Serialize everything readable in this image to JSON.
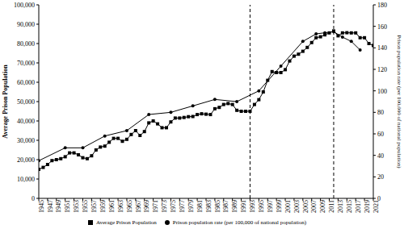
{
  "chart_data": {
    "type": "line",
    "x": [
      1945,
      1946,
      1947,
      1948,
      1949,
      1950,
      1951,
      1952,
      1953,
      1954,
      1955,
      1956,
      1957,
      1958,
      1959,
      1960,
      1961,
      1962,
      1963,
      1964,
      1965,
      1966,
      1967,
      1968,
      1969,
      1970,
      1971,
      1972,
      1973,
      1974,
      1975,
      1976,
      1977,
      1978,
      1979,
      1980,
      1981,
      1982,
      1983,
      1984,
      1985,
      1986,
      1987,
      1988,
      1989,
      1990,
      1991,
      1992,
      1993,
      1994,
      1995,
      1996,
      1997,
      1998,
      1999,
      2000,
      2001,
      2002,
      2003,
      2004,
      2005,
      2006,
      2007,
      2008,
      2009,
      2010,
      2011,
      2012,
      2013,
      2014,
      2015,
      2016,
      2017,
      2018,
      2019,
      2020,
      2021
    ],
    "xlim": [
      1945,
      2021
    ],
    "xticks": [
      1945,
      1947,
      1949,
      1951,
      1953,
      1955,
      1957,
      1959,
      1961,
      1963,
      1965,
      1967,
      1969,
      1971,
      1973,
      1975,
      1977,
      1979,
      1981,
      1983,
      1985,
      1987,
      1989,
      1991,
      1993,
      1995,
      1997,
      1999,
      2001,
      2003,
      2005,
      2007,
      2009,
      2011,
      2013,
      2015,
      2017,
      2019,
      2021
    ],
    "y_label": "Average Prison Population",
    "y2_label": "Prison population rate (per 100,000 of national population)",
    "ylim": [
      0,
      100000
    ],
    "yticks": [
      0,
      {
        "value": 10000,
        "label": "10,000"
      },
      {
        "value": 20000,
        "label": "20,000"
      },
      {
        "value": 30000,
        "label": "30,000"
      },
      {
        "value": 40000,
        "label": "40,000"
      },
      {
        "value": 50000,
        "label": "50,000"
      },
      {
        "value": 60000,
        "label": "60,000"
      },
      {
        "value": 70000,
        "label": "70,000"
      },
      {
        "value": 80000,
        "label": "80,000"
      },
      {
        "value": 90000,
        "label": "90,000"
      },
      {
        "value": 100000,
        "label": "100,000"
      }
    ],
    "y2lim": [
      0,
      180
    ],
    "y2ticks": [
      0,
      20,
      40,
      60,
      80,
      100,
      120,
      140,
      160,
      180
    ],
    "series": [
      {
        "name": "Average Prison Population",
        "color": "#000000",
        "marker": "square",
        "values": [
          15000,
          16000,
          17500,
          19500,
          20000,
          20500,
          21500,
          23500,
          23500,
          22500,
          21000,
          20500,
          22000,
          25000,
          26500,
          27000,
          29000,
          31000,
          31000,
          29500,
          30500,
          33000,
          35000,
          32500,
          34500,
          39000,
          40000,
          38500,
          36500,
          36500,
          39500,
          41500,
          41500,
          41800,
          42200,
          42300,
          43300,
          43700,
          43500,
          43300,
          46300,
          47000,
          48500,
          49000,
          48500,
          45500,
          45000,
          45000,
          45000,
          48500,
          51000,
          55000,
          61000,
          65500,
          65000,
          65000,
          66500,
          71000,
          73500,
          74500,
          76000,
          78000,
          80500,
          83000,
          83500,
          84500,
          85500,
          86500,
          84000,
          85500,
          85600,
          85500,
          85500,
          83000,
          83000,
          80000,
          79000
        ]
      },
      {
        "name": "Prison population rate (per 100,000 of national population)",
        "color": "#000000",
        "marker": "circle",
        "axis": "y2",
        "values": [
          35,
          null,
          null,
          null,
          null,
          null,
          47,
          null,
          null,
          null,
          47,
          null,
          null,
          null,
          null,
          58,
          null,
          null,
          null,
          null,
          63,
          null,
          null,
          null,
          null,
          78,
          null,
          null,
          null,
          null,
          80,
          null,
          null,
          null,
          null,
          86,
          null,
          null,
          null,
          null,
          92,
          null,
          null,
          null,
          null,
          90,
          null,
          null,
          null,
          null,
          100,
          null,
          null,
          null,
          null,
          123,
          null,
          null,
          null,
          null,
          146,
          null,
          null,
          153,
          null,
          154,
          null,
          155,
          null,
          150,
          null,
          146,
          null,
          138,
          null,
          null,
          null
        ]
      }
    ],
    "vlines": [
      1993,
      2012
    ],
    "legend": "bottom",
    "grid": false
  }
}
